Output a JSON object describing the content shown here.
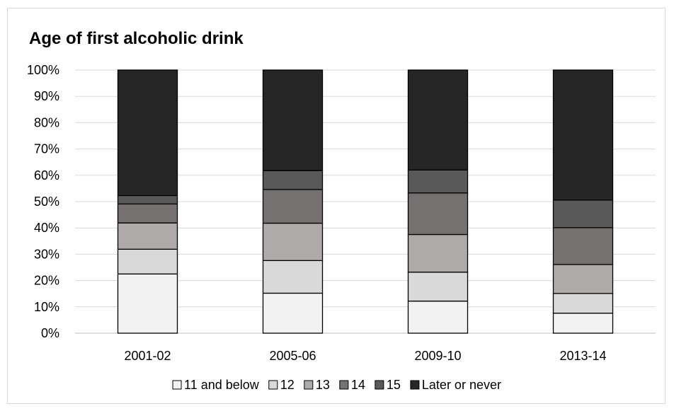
{
  "chart_data": {
    "type": "bar",
    "stacked": true,
    "title": "Age of first alcoholic drink",
    "xlabel": "",
    "ylabel": "",
    "ylim": [
      0,
      100
    ],
    "y_ticks": [
      "0%",
      "10%",
      "20%",
      "30%",
      "40%",
      "50%",
      "60%",
      "70%",
      "80%",
      "90%",
      "100%"
    ],
    "grid": true,
    "legend_position": "bottom",
    "categories": [
      "2001-02",
      "2005-06",
      "2009-10",
      "2013-14"
    ],
    "series": [
      {
        "name": "11 and below",
        "color": "#f2f2f2",
        "values": [
          22.5,
          15.2,
          12.2,
          7.6
        ]
      },
      {
        "name": "12",
        "color": "#d9d9d9",
        "values": [
          9.4,
          12.4,
          11.0,
          7.5
        ]
      },
      {
        "name": "13",
        "color": "#aeaaaa",
        "values": [
          10.0,
          14.2,
          14.3,
          11.0
        ]
      },
      {
        "name": "14",
        "color": "#767171",
        "values": [
          7.2,
          12.8,
          15.8,
          14.0
        ]
      },
      {
        "name": "15",
        "color": "#595959",
        "values": [
          3.2,
          7.2,
          8.7,
          10.5
        ]
      },
      {
        "name": "Later or never",
        "color": "#262626",
        "values": [
          47.7,
          38.2,
          38.0,
          49.4
        ]
      }
    ]
  }
}
